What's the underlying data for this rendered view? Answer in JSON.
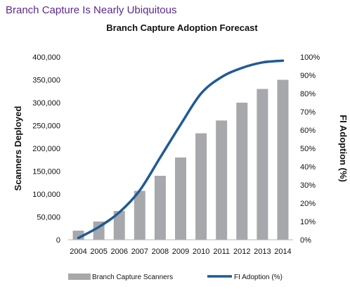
{
  "headline": "Branch Capture Is Nearly Ubiquitous",
  "chart_data": {
    "type": "bar",
    "title": "Branch Capture Adoption Forecast",
    "categories": [
      "2004",
      "2005",
      "2006",
      "2007",
      "2008",
      "2009",
      "2010",
      "2011",
      "2012",
      "2013",
      "2014"
    ],
    "series": [
      {
        "name": "Branch Capture Scanners",
        "type": "bar",
        "axis": "left",
        "color": "#a6a8ab",
        "values": [
          20000,
          40000,
          63000,
          107000,
          140000,
          180000,
          233000,
          261000,
          300000,
          330000,
          350000
        ]
      },
      {
        "name": "FI Adoption (%)",
        "type": "line",
        "axis": "right",
        "color": "#1f5a96",
        "values": [
          1,
          7,
          15,
          27,
          45,
          63,
          80,
          89,
          94,
          97,
          98
        ]
      }
    ],
    "ylabel": "Scanners Deployed",
    "ylim": [
      0,
      400000
    ],
    "yticks": [
      "0",
      "50,000",
      "100,000",
      "150,000",
      "200,000",
      "250,000",
      "300,000",
      "350,000",
      "400,000"
    ],
    "y2label": "FI Adoption (%)",
    "y2lim": [
      0,
      100
    ],
    "y2ticks": [
      "0%",
      "10%",
      "20%",
      "30%",
      "40%",
      "50%",
      "60%",
      "70%",
      "80%",
      "90%",
      "100%"
    ],
    "grid": false,
    "legend_position": "bottom"
  }
}
